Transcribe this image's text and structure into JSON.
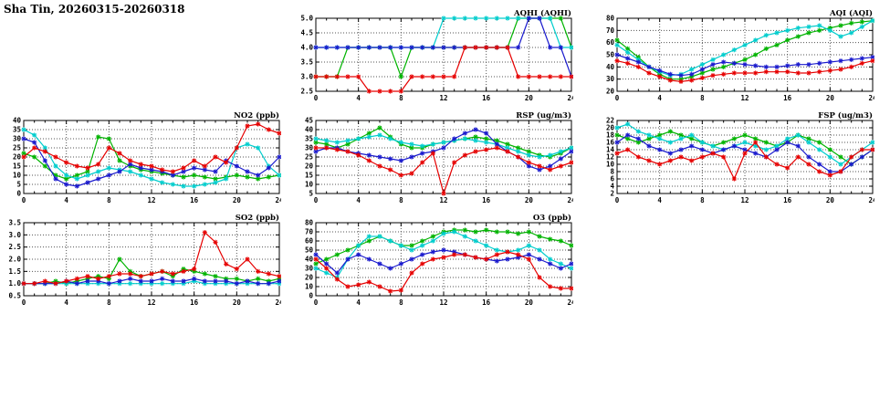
{
  "page": {
    "title": "Sha Tin, 20260315-20260318"
  },
  "colors": {
    "red": "#e60000",
    "blue": "#1a1acd",
    "green": "#00b300",
    "cyan": "#00cdcd",
    "grid": "#555555",
    "axis": "#000000"
  },
  "chart_data": [
    {
      "type": "line",
      "title": "AQHI (AQHI)",
      "x_start": 0,
      "x_step": 1,
      "xlim": [
        0,
        24
      ],
      "xticks": [
        0,
        4,
        8,
        12,
        16,
        20,
        24
      ],
      "ylim": [
        2.5,
        5.0
      ],
      "yticks": [
        2.5,
        3.0,
        3.5,
        4.0,
        4.5,
        5.0
      ],
      "ytick_labels": [
        "2.5",
        "3.0",
        "3.5",
        "4.0",
        "4.5",
        "5.0"
      ],
      "grid": true,
      "legend": "none",
      "series": [
        {
          "name": "green",
          "color_key": "green",
          "values": [
            3,
            3,
            3,
            4,
            4,
            4,
            4,
            4,
            3,
            4,
            4,
            4,
            4,
            4,
            4,
            4,
            4,
            4,
            4,
            5,
            5,
            5,
            5,
            5,
            4
          ]
        },
        {
          "name": "cyan",
          "color_key": "cyan",
          "values": [
            4,
            4,
            4,
            4,
            4,
            4,
            4,
            4,
            4,
            4,
            4,
            4,
            5,
            5,
            5,
            5,
            5,
            5,
            5,
            5,
            5,
            5,
            5,
            4,
            4
          ]
        },
        {
          "name": "blue",
          "color_key": "blue",
          "values": [
            4,
            4,
            4,
            4,
            4,
            4,
            4,
            4,
            4,
            4,
            4,
            4,
            4,
            4,
            4,
            4,
            4,
            4,
            4,
            4,
            5,
            5,
            4,
            4,
            3
          ]
        },
        {
          "name": "red",
          "color_key": "red",
          "values": [
            3,
            3,
            3,
            3,
            3,
            2.5,
            2.5,
            2.5,
            2.5,
            3,
            3,
            3,
            3,
            3,
            4,
            4,
            4,
            4,
            4,
            3,
            3,
            3,
            3,
            3,
            3
          ]
        }
      ]
    },
    {
      "type": "line",
      "title": "AQI (AQI)",
      "x_start": 0,
      "x_step": 1,
      "xlim": [
        0,
        24
      ],
      "xticks": [
        0,
        4,
        8,
        12,
        16,
        20,
        24
      ],
      "ylim": [
        20,
        80
      ],
      "yticks": [
        20,
        30,
        40,
        50,
        60,
        70,
        80
      ],
      "ytick_labels": [
        "20",
        "30",
        "40",
        "50",
        "60",
        "70",
        "80"
      ],
      "grid": true,
      "legend": "none",
      "series": [
        {
          "name": "green",
          "color_key": "green",
          "values": [
            62,
            55,
            48,
            40,
            34,
            30,
            30,
            32,
            35,
            38,
            40,
            43,
            46,
            50,
            55,
            58,
            62,
            65,
            68,
            70,
            72,
            74,
            76,
            77,
            78
          ]
        },
        {
          "name": "cyan",
          "color_key": "cyan",
          "values": [
            58,
            52,
            46,
            40,
            36,
            33,
            34,
            38,
            42,
            46,
            50,
            54,
            58,
            62,
            66,
            68,
            70,
            72,
            73,
            74,
            70,
            65,
            68,
            73,
            78
          ]
        },
        {
          "name": "blue",
          "color_key": "blue",
          "values": [
            50,
            47,
            44,
            40,
            37,
            34,
            33,
            34,
            38,
            42,
            44,
            43,
            42,
            41,
            40,
            40,
            41,
            42,
            42,
            43,
            44,
            45,
            46,
            47,
            48
          ]
        },
        {
          "name": "red",
          "color_key": "red",
          "values": [
            45,
            43,
            40,
            35,
            32,
            29,
            28,
            29,
            31,
            33,
            34,
            35,
            35,
            35,
            36,
            36,
            36,
            35,
            35,
            36,
            37,
            38,
            40,
            43,
            45
          ]
        }
      ]
    },
    {
      "type": "line",
      "title": "NO2 (ppb)",
      "x_start": 0,
      "x_step": 1,
      "xlim": [
        0,
        24
      ],
      "xticks": [
        0,
        4,
        8,
        12,
        16,
        20,
        24
      ],
      "ylim": [
        0,
        40
      ],
      "yticks": [
        0,
        5,
        10,
        15,
        20,
        25,
        30,
        35,
        40
      ],
      "ytick_labels": [
        "0",
        "5",
        "10",
        "15",
        "20",
        "25",
        "30",
        "35",
        "40"
      ],
      "grid": true,
      "legend": "none",
      "series": [
        {
          "name": "green",
          "color_key": "green",
          "values": [
            22,
            20,
            15,
            10,
            8,
            10,
            12,
            31,
            30,
            18,
            15,
            13,
            12,
            11,
            10,
            9,
            10,
            9,
            8,
            9,
            10,
            9,
            8,
            9,
            10
          ]
        },
        {
          "name": "cyan",
          "color_key": "cyan",
          "values": [
            35,
            32,
            25,
            15,
            10,
            8,
            10,
            12,
            14,
            13,
            12,
            10,
            8,
            6,
            5,
            4,
            4,
            5,
            6,
            8,
            25,
            27,
            25,
            15,
            10
          ]
        },
        {
          "name": "blue",
          "color_key": "blue",
          "values": [
            30,
            28,
            18,
            8,
            5,
            4,
            6,
            8,
            10,
            12,
            16,
            14,
            13,
            12,
            10,
            12,
            14,
            13,
            12,
            18,
            15,
            12,
            10,
            14,
            20
          ]
        },
        {
          "name": "red",
          "color_key": "red",
          "values": [
            20,
            25,
            23,
            20,
            17,
            15,
            14,
            16,
            25,
            22,
            18,
            16,
            15,
            13,
            12,
            14,
            18,
            15,
            20,
            17,
            25,
            37,
            38,
            35,
            33
          ]
        }
      ]
    },
    {
      "type": "line",
      "title": "RSP (ug/m3)",
      "x_start": 0,
      "x_step": 1,
      "xlim": [
        0,
        24
      ],
      "xticks": [
        0,
        4,
        8,
        12,
        16,
        20,
        24
      ],
      "ylim": [
        5,
        45
      ],
      "yticks": [
        5,
        10,
        15,
        20,
        25,
        30,
        35,
        40,
        45
      ],
      "ytick_labels": [
        "5",
        "10",
        "15",
        "20",
        "25",
        "30",
        "35",
        "40",
        "45"
      ],
      "grid": true,
      "legend": "none",
      "series": [
        {
          "name": "green",
          "color_key": "green",
          "values": [
            33,
            32,
            30,
            32,
            35,
            38,
            41,
            36,
            32,
            30,
            30,
            32,
            33,
            34,
            35,
            36,
            35,
            34,
            32,
            30,
            28,
            26,
            25,
            27,
            30
          ]
        },
        {
          "name": "cyan",
          "color_key": "cyan",
          "values": [
            35,
            34,
            33,
            34,
            35,
            36,
            37,
            35,
            33,
            32,
            31,
            32,
            33,
            34,
            35,
            34,
            33,
            32,
            30,
            28,
            26,
            25,
            26,
            28,
            30
          ]
        },
        {
          "name": "blue",
          "color_key": "blue",
          "values": [
            28,
            30,
            30,
            28,
            27,
            26,
            25,
            24,
            23,
            25,
            27,
            28,
            30,
            35,
            38,
            40,
            38,
            32,
            28,
            25,
            20,
            18,
            20,
            24,
            28
          ]
        },
        {
          "name": "red",
          "color_key": "red",
          "values": [
            30,
            30,
            29,
            28,
            26,
            23,
            20,
            18,
            15,
            16,
            22,
            27,
            5,
            22,
            26,
            28,
            29,
            30,
            28,
            25,
            22,
            20,
            18,
            20,
            22
          ]
        }
      ]
    },
    {
      "type": "line",
      "title": "FSP (ug/m3)",
      "x_start": 0,
      "x_step": 1,
      "xlim": [
        0,
        24
      ],
      "xticks": [
        0,
        4,
        8,
        12,
        16,
        20,
        24
      ],
      "ylim": [
        2,
        22
      ],
      "yticks": [
        2,
        4,
        6,
        8,
        10,
        12,
        14,
        16,
        18,
        20,
        22
      ],
      "ytick_labels": [
        "2",
        "4",
        "6",
        "8",
        "10",
        "12",
        "14",
        "16",
        "18",
        "20",
        "22"
      ],
      "grid": true,
      "legend": "none",
      "series": [
        {
          "name": "green",
          "color_key": "green",
          "values": [
            18,
            17,
            16,
            17,
            18,
            19,
            18,
            17,
            16,
            15,
            16,
            17,
            18,
            17,
            16,
            15,
            16,
            18,
            17,
            16,
            14,
            12,
            10,
            12,
            14
          ]
        },
        {
          "name": "cyan",
          "color_key": "cyan",
          "values": [
            20,
            21,
            19,
            18,
            17,
            16,
            17,
            18,
            16,
            15,
            14,
            15,
            16,
            15,
            14,
            15,
            17,
            18,
            16,
            14,
            12,
            10,
            12,
            14,
            16
          ]
        },
        {
          "name": "blue",
          "color_key": "blue",
          "values": [
            16,
            18,
            17,
            15,
            14,
            13,
            14,
            15,
            14,
            13,
            14,
            15,
            14,
            13,
            12,
            14,
            16,
            15,
            12,
            10,
            8,
            8,
            10,
            12,
            14
          ]
        },
        {
          "name": "red",
          "color_key": "red",
          "values": [
            13,
            14,
            12,
            11,
            10,
            11,
            12,
            11,
            12,
            13,
            12,
            6,
            13,
            16,
            12,
            10,
            9,
            12,
            10,
            8,
            7,
            8,
            12,
            14,
            14
          ]
        }
      ]
    },
    {
      "type": "line",
      "title": "SO2 (ppb)",
      "x_start": 0,
      "x_step": 1,
      "xlim": [
        0,
        24
      ],
      "xticks": [
        0,
        4,
        8,
        12,
        16,
        20,
        24
      ],
      "ylim": [
        0.5,
        3.5
      ],
      "yticks": [
        0.5,
        1.0,
        1.5,
        2.0,
        2.5,
        3.0,
        3.5
      ],
      "ytick_labels": [
        "0.5",
        "1.0",
        "1.5",
        "2.0",
        "2.5",
        "3.0",
        "3.5"
      ],
      "grid": true,
      "legend": "none",
      "series": [
        {
          "name": "green",
          "color_key": "green",
          "values": [
            1.0,
            1.0,
            1.0,
            1.1,
            1.0,
            1.1,
            1.2,
            1.3,
            1.2,
            2.0,
            1.5,
            1.3,
            1.4,
            1.5,
            1.3,
            1.6,
            1.5,
            1.4,
            1.3,
            1.2,
            1.2,
            1.1,
            1.2,
            1.1,
            1.2
          ]
        },
        {
          "name": "cyan",
          "color_key": "cyan",
          "values": [
            1.0,
            1.0,
            1.0,
            1.0,
            1.0,
            1.0,
            1.0,
            1.0,
            1.0,
            1.0,
            1.0,
            1.0,
            1.0,
            1.0,
            1.0,
            1.0,
            1.1,
            1.0,
            1.0,
            1.0,
            1.0,
            1.0,
            1.0,
            1.0,
            1.0
          ]
        },
        {
          "name": "blue",
          "color_key": "blue",
          "values": [
            1.0,
            1.0,
            1.0,
            1.0,
            1.1,
            1.0,
            1.1,
            1.1,
            1.0,
            1.1,
            1.2,
            1.1,
            1.1,
            1.2,
            1.1,
            1.1,
            1.2,
            1.1,
            1.1,
            1.1,
            1.0,
            1.1,
            1.0,
            1.0,
            1.1
          ]
        },
        {
          "name": "red",
          "color_key": "red",
          "values": [
            1.0,
            1.0,
            1.1,
            1.0,
            1.1,
            1.2,
            1.3,
            1.2,
            1.3,
            1.4,
            1.4,
            1.3,
            1.4,
            1.5,
            1.4,
            1.5,
            1.6,
            3.1,
            2.7,
            1.8,
            1.6,
            2.0,
            1.5,
            1.4,
            1.3
          ]
        }
      ]
    },
    {
      "type": "line",
      "title": "O3 (ppb)",
      "x_start": 0,
      "x_step": 1,
      "xlim": [
        0,
        24
      ],
      "xticks": [
        0,
        4,
        8,
        12,
        16,
        20,
        24
      ],
      "ylim": [
        0,
        80
      ],
      "yticks": [
        0,
        10,
        20,
        30,
        40,
        50,
        60,
        70,
        80
      ],
      "ytick_labels": [
        "0",
        "10",
        "20",
        "30",
        "40",
        "50",
        "60",
        "70",
        "80"
      ],
      "grid": true,
      "legend": "none",
      "series": [
        {
          "name": "green",
          "color_key": "green",
          "values": [
            35,
            40,
            45,
            50,
            55,
            60,
            65,
            60,
            55,
            55,
            60,
            65,
            70,
            72,
            72,
            70,
            72,
            70,
            70,
            68,
            70,
            65,
            62,
            60,
            55
          ]
        },
        {
          "name": "cyan",
          "color_key": "cyan",
          "values": [
            30,
            25,
            20,
            40,
            55,
            65,
            65,
            60,
            55,
            50,
            55,
            60,
            68,
            70,
            65,
            60,
            55,
            50,
            48,
            50,
            55,
            50,
            40,
            35,
            30
          ]
        },
        {
          "name": "blue",
          "color_key": "blue",
          "values": [
            45,
            35,
            25,
            40,
            45,
            40,
            35,
            30,
            35,
            40,
            45,
            48,
            50,
            48,
            45,
            42,
            40,
            38,
            40,
            42,
            45,
            40,
            35,
            30,
            35
          ]
        },
        {
          "name": "red",
          "color_key": "red",
          "values": [
            40,
            30,
            18,
            10,
            12,
            15,
            10,
            5,
            6,
            25,
            35,
            40,
            42,
            45,
            45,
            42,
            40,
            45,
            48,
            45,
            40,
            20,
            10,
            8,
            8
          ]
        }
      ]
    }
  ]
}
